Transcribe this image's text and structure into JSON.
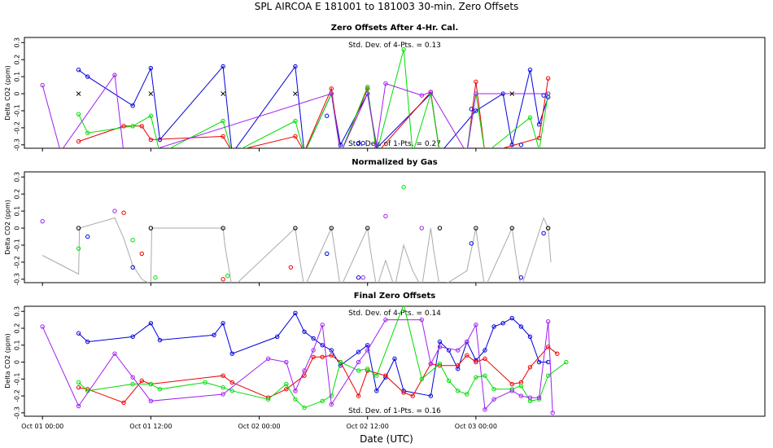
{
  "title": "SPL   AIRCOA E   181001 to 181003   30-min. Zero Offsets",
  "xlabel": "Date (UTC)",
  "chart_data": {
    "type": "line",
    "x_unit": "hours since 2018-10-01 00:00 UTC",
    "xlim": [
      -2,
      80
    ],
    "x_ticks": [
      {
        "x": 0,
        "label": "Oct 01 00:00"
      },
      {
        "x": 12,
        "label": "Oct 01 12:00"
      },
      {
        "x": 24,
        "label": "Oct 02 00:00"
      },
      {
        "x": 36,
        "label": "Oct 02 12:00"
      },
      {
        "x": 48,
        "label": "Oct 03 00:00"
      }
    ],
    "colors": {
      "red": "#ee0000",
      "green": "#00dd00",
      "blue": "#0000dd",
      "purple": "#a020f0",
      "gray": "#aaaaaa",
      "black": "#000000"
    },
    "panels": [
      {
        "title": "Zero Offsets After 4-Hr. Cal.",
        "ylabel": "Delta CO2 (ppm)",
        "ylim": [
          -0.32,
          0.33
        ],
        "yticks": [
          -0.3,
          -0.2,
          -0.1,
          0,
          0.1,
          0.2,
          0.3
        ],
        "ytick_labels": [
          "-0.3",
          "-0.2",
          "-0.1",
          "0",
          "0.1",
          "0.2",
          "0.3"
        ],
        "stat_top": "Std. Dev. of 4-Pts. =  0.13",
        "stat_bottom": "Std. Dev. of 1-Pts. =  0.27",
        "series": [
          {
            "name": "blue",
            "color": "blue",
            "x": [
              4,
              5,
              10,
              12,
              13,
              20,
              21,
              28,
              29,
              32,
              33,
              36,
              37,
              43,
              44,
              48,
              51,
              52,
              54,
              55,
              56
            ],
            "y": [
              0.14,
              0.1,
              -0.07,
              0.15,
              -0.27,
              0.16,
              -0.35,
              0.16,
              -0.35,
              0.0,
              -0.3,
              0.0,
              -0.32,
              0.0,
              -0.35,
              -0.1,
              0.0,
              -0.3,
              0.14,
              -0.18,
              -0.02
            ]
          },
          {
            "name": "red",
            "color": "red",
            "x": [
              4,
              9,
              11,
              12,
              20,
              21,
              28,
              29,
              32,
              33,
              36,
              37,
              43,
              44,
              47,
              48,
              49,
              55,
              56
            ],
            "y": [
              -0.28,
              -0.19,
              -0.19,
              -0.27,
              -0.25,
              -0.34,
              -0.25,
              -0.34,
              0.03,
              -0.35,
              0.03,
              -0.35,
              0.01,
              -0.35,
              -0.35,
              0.07,
              -0.35,
              -0.26,
              0.09
            ]
          },
          {
            "name": "green",
            "color": "green",
            "x": [
              4,
              5,
              10,
              12,
              13,
              20,
              21,
              28,
              29,
              32,
              33,
              36,
              37,
              40,
              41,
              43,
              44,
              47,
              48,
              49,
              54,
              55,
              56
            ],
            "y": [
              -0.12,
              -0.23,
              -0.19,
              -0.13,
              -0.35,
              -0.16,
              -0.35,
              -0.16,
              -0.35,
              0.0,
              -0.35,
              0.04,
              -0.35,
              0.26,
              -0.35,
              0.0,
              -0.35,
              -0.33,
              0.0,
              -0.35,
              -0.14,
              -0.33,
              0.0
            ]
          },
          {
            "name": "purple",
            "color": "purple",
            "x": [
              0,
              2,
              8,
              9,
              11,
              32,
              33,
              36,
              37,
              38,
              42,
              43,
              47,
              48,
              56
            ],
            "y": [
              0.05,
              -0.34,
              0.11,
              -0.35,
              -0.35,
              0.0,
              -0.35,
              0.0,
              -0.3,
              0.06,
              -0.01,
              0.01,
              -0.35,
              0.0,
              0.0
            ]
          },
          {
            "name": "blue-markers",
            "color": "blue",
            "markers_only": true,
            "x": [
              31.5,
              35,
              35.5,
              47.5,
              53,
              55.5
            ],
            "y": [
              -0.13,
              -0.29,
              -0.29,
              -0.09,
              -0.3,
              -0.01
            ]
          },
          {
            "name": "cal-points",
            "color": "black",
            "marker": "x",
            "markers_only": true,
            "x": [
              4,
              12,
              20,
              28,
              52
            ],
            "y": [
              0,
              0,
              0,
              0,
              0
            ]
          }
        ]
      },
      {
        "title": "Normalized by Gas",
        "ylabel": "Delta CO2 (ppm)",
        "ylim": [
          -0.32,
          0.33
        ],
        "yticks": [
          -0.3,
          -0.2,
          -0.1,
          0,
          0.1,
          0.2,
          0.3
        ],
        "ytick_labels": [
          "-0.3",
          "-0.2",
          "-0.1",
          "0",
          "0.1",
          "0.2",
          "0.3"
        ],
        "series": [
          {
            "name": "gray",
            "color": "gray",
            "x": [
              0,
              4,
              4.1,
              8,
              9,
              10,
              11,
              12,
              12.1,
              20,
              20.2,
              21,
              28,
              28.3,
              29,
              32,
              32.3,
              33,
              36,
              36.3,
              37,
              38,
              39,
              40,
              41,
              42,
              43,
              43.3,
              44,
              47,
              48,
              48.3,
              49,
              52,
              52.4,
              53,
              55.5,
              56,
              56.3
            ],
            "y": [
              -0.16,
              -0.27,
              0.0,
              0.06,
              -0.06,
              -0.22,
              -0.3,
              -0.33,
              0.0,
              0.0,
              -0.1,
              -0.35,
              0.0,
              -0.12,
              -0.35,
              0.0,
              -0.1,
              -0.35,
              0.0,
              -0.12,
              -0.35,
              -0.19,
              -0.35,
              -0.1,
              -0.25,
              -0.35,
              0.0,
              -0.12,
              -0.35,
              -0.25,
              0.0,
              -0.12,
              -0.35,
              0.0,
              -0.15,
              -0.35,
              0.06,
              0.0,
              -0.2
            ]
          },
          {
            "name": "blue",
            "color": "blue",
            "markers_only": true,
            "x": [
              5,
              10,
              31.5,
              35,
              47.5,
              53,
              55.5
            ],
            "y": [
              -0.05,
              -0.23,
              -0.15,
              -0.29,
              -0.09,
              -0.29,
              -0.03
            ]
          },
          {
            "name": "red",
            "color": "red",
            "markers_only": true,
            "x": [
              9,
              11,
              20,
              27.5
            ],
            "y": [
              0.09,
              -0.15,
              -0.3,
              -0.23
            ]
          },
          {
            "name": "green",
            "color": "green",
            "markers_only": true,
            "x": [
              4,
              10,
              12.5,
              20.5,
              40
            ],
            "y": [
              -0.12,
              -0.07,
              -0.29,
              -0.28,
              0.24
            ]
          },
          {
            "name": "purple",
            "color": "purple",
            "markers_only": true,
            "x": [
              0,
              8,
              35.5,
              38,
              42
            ],
            "y": [
              0.04,
              0.1,
              -0.29,
              0.07,
              0.0
            ]
          },
          {
            "name": "black",
            "color": "black",
            "markers_only": true,
            "x": [
              4,
              12,
              20,
              28,
              32,
              36,
              44,
              48,
              52,
              56
            ],
            "y": [
              0,
              0,
              0,
              0,
              0,
              0,
              0,
              0,
              0,
              0
            ]
          }
        ]
      },
      {
        "title": "Final Zero Offsets",
        "ylabel": "Delta CO2 (ppm)",
        "ylim": [
          -0.32,
          0.33
        ],
        "yticks": [
          -0.3,
          -0.2,
          -0.1,
          0,
          0.1,
          0.2,
          0.3
        ],
        "ytick_labels": [
          "-0.3",
          "-0.2",
          "-0.1",
          "0",
          "0.1",
          "0.2",
          "0.3"
        ],
        "stat_top": "Std. Dev. of 4-Pts. =  0.14",
        "stat_bottom": "Std. Dev. of 1-Pts. =  0.16",
        "series": [
          {
            "name": "blue",
            "color": "blue",
            "x": [
              4,
              5,
              10,
              12,
              13,
              19,
              20,
              21,
              26,
              28,
              29,
              30,
              31,
              32,
              33,
              35,
              36,
              37,
              38,
              39,
              40,
              43,
              44,
              45,
              46,
              47,
              48,
              49,
              50,
              51,
              52,
              53,
              54,
              55,
              56
            ],
            "y": [
              0.17,
              0.12,
              0.15,
              0.23,
              0.13,
              0.16,
              0.23,
              0.05,
              0.15,
              0.29,
              0.18,
              0.14,
              0.1,
              0.07,
              -0.02,
              0.06,
              0.1,
              -0.17,
              -0.09,
              0.02,
              -0.17,
              -0.2,
              0.12,
              0.07,
              -0.04,
              0.12,
              0.01,
              0.07,
              0.21,
              0.23,
              0.26,
              0.21,
              0.15,
              0.0,
              0.0
            ]
          },
          {
            "name": "red",
            "color": "red",
            "x": [
              4,
              5,
              9,
              11,
              12,
              20,
              21,
              25,
              27,
              29,
              30,
              31,
              32,
              33,
              35,
              36,
              38,
              40,
              41,
              43,
              44,
              46,
              47,
              48,
              49,
              52,
              53,
              54,
              56,
              57
            ],
            "y": [
              -0.15,
              -0.16,
              -0.24,
              -0.11,
              -0.13,
              -0.08,
              -0.12,
              -0.21,
              -0.16,
              -0.08,
              0.03,
              0.03,
              0.04,
              0.0,
              -0.2,
              -0.05,
              -0.08,
              -0.18,
              -0.2,
              -0.01,
              -0.02,
              -0.02,
              0.04,
              0.0,
              0.02,
              -0.13,
              -0.12,
              -0.03,
              0.09,
              0.05
            ]
          },
          {
            "name": "green",
            "color": "green",
            "x": [
              4,
              5,
              10,
              12,
              13,
              18,
              20,
              21,
              25,
              27,
              28,
              29,
              31,
              32,
              33,
              35,
              36,
              37,
              40,
              42,
              44,
              45,
              46,
              47,
              48,
              49,
              50,
              52,
              53,
              54,
              55,
              56,
              58
            ],
            "y": [
              -0.12,
              -0.17,
              -0.13,
              -0.13,
              -0.16,
              -0.12,
              -0.15,
              -0.17,
              -0.22,
              -0.13,
              -0.22,
              -0.27,
              -0.23,
              -0.2,
              0.0,
              -0.05,
              -0.04,
              -0.08,
              0.34,
              -0.1,
              -0.01,
              -0.11,
              -0.17,
              -0.19,
              -0.09,
              -0.08,
              -0.16,
              -0.16,
              -0.14,
              -0.23,
              -0.22,
              -0.08,
              0.0
            ]
          },
          {
            "name": "purple",
            "color": "purple",
            "x": [
              0,
              4,
              8,
              10,
              12,
              20,
              25,
              27,
              28,
              29,
              30,
              31,
              32,
              35,
              36,
              38,
              42,
              43,
              44,
              46,
              47,
              48,
              49,
              50,
              52,
              53,
              54,
              55,
              56,
              56.5
            ],
            "y": [
              0.21,
              -0.26,
              0.05,
              -0.09,
              -0.23,
              -0.19,
              0.02,
              0.0,
              -0.17,
              -0.05,
              0.07,
              0.22,
              -0.25,
              0.0,
              0.07,
              0.25,
              0.25,
              -0.01,
              0.09,
              0.07,
              0.12,
              0.22,
              -0.28,
              -0.22,
              -0.17,
              -0.2,
              -0.21,
              -0.21,
              0.24,
              -0.3
            ]
          }
        ]
      }
    ]
  }
}
